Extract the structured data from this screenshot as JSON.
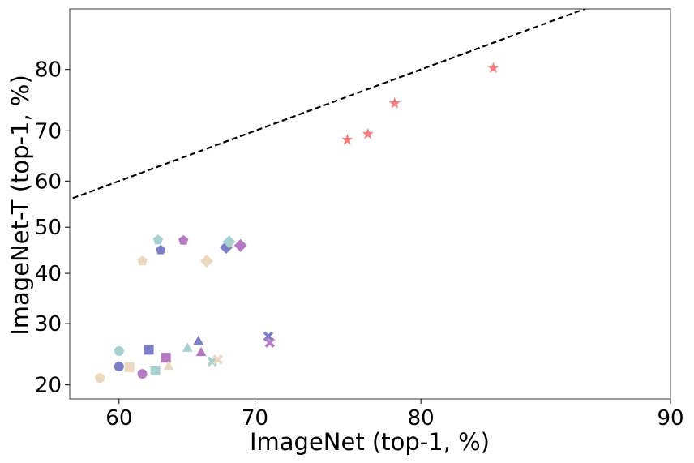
{
  "chart_data": {
    "type": "scatter",
    "title": "",
    "xlabel": "ImageNet (top-1, %)",
    "ylabel": "ImageNet-T (top-1, %)",
    "x_scale": "logit",
    "y_scale": "logit",
    "xlim": [
      56.1,
      90
    ],
    "ylim": [
      18.1,
      87.2
    ],
    "x_ticks": [
      60,
      70,
      80,
      90
    ],
    "x_tick_labels": [
      "60",
      "70",
      "80",
      "90"
    ],
    "y_ticks": [
      20,
      30,
      40,
      50,
      60,
      70,
      80
    ],
    "y_tick_labels": [
      "20",
      "30",
      "40",
      "50",
      "60",
      "70",
      "80"
    ],
    "grid": false,
    "reference_line": {
      "style": "dashed",
      "color": "#000000",
      "description": "y = x"
    },
    "colors": {
      "salmon": "#f47f7f",
      "teal": "#a9d0d1",
      "indigo": "#7d7fc6",
      "orchid": "#b57bc2",
      "beige": "#ead8c1"
    },
    "points": [
      {
        "x": 58.5,
        "y": 21.0,
        "marker": "circle",
        "color": "#ead8c1"
      },
      {
        "x": 60.0,
        "y": 25.2,
        "marker": "circle",
        "color": "#a9d0d1"
      },
      {
        "x": 60.0,
        "y": 22.7,
        "marker": "circle",
        "color": "#7d7fc6"
      },
      {
        "x": 61.8,
        "y": 21.6,
        "marker": "circle",
        "color": "#b57bc2"
      },
      {
        "x": 60.8,
        "y": 22.6,
        "marker": "square",
        "color": "#ead8c1"
      },
      {
        "x": 62.3,
        "y": 25.4,
        "marker": "square",
        "color": "#7d7fc6"
      },
      {
        "x": 62.8,
        "y": 22.1,
        "marker": "square",
        "color": "#a9d0d1"
      },
      {
        "x": 63.6,
        "y": 24.1,
        "marker": "square",
        "color": "#b57bc2"
      },
      {
        "x": 63.8,
        "y": 22.8,
        "marker": "triangle",
        "color": "#ead8c1"
      },
      {
        "x": 65.2,
        "y": 25.7,
        "marker": "triangle",
        "color": "#a9d0d1"
      },
      {
        "x": 66.0,
        "y": 26.9,
        "marker": "triangle",
        "color": "#7d7fc6"
      },
      {
        "x": 66.2,
        "y": 25.0,
        "marker": "triangle",
        "color": "#b57bc2"
      },
      {
        "x": 67.0,
        "y": 23.5,
        "marker": "x",
        "color": "#a9d0d1"
      },
      {
        "x": 67.4,
        "y": 23.8,
        "marker": "x",
        "color": "#ead8c1"
      },
      {
        "x": 70.9,
        "y": 27.7,
        "marker": "x",
        "color": "#7d7fc6"
      },
      {
        "x": 71.0,
        "y": 26.6,
        "marker": "x",
        "color": "#b57bc2"
      },
      {
        "x": 61.8,
        "y": 42.6,
        "marker": "pentagon",
        "color": "#ead8c1"
      },
      {
        "x": 63.0,
        "y": 47.2,
        "marker": "pentagon",
        "color": "#a9d0d1"
      },
      {
        "x": 63.2,
        "y": 45.0,
        "marker": "pentagon",
        "color": "#7d7fc6"
      },
      {
        "x": 64.9,
        "y": 47.1,
        "marker": "pentagon",
        "color": "#b57bc2"
      },
      {
        "x": 66.6,
        "y": 42.6,
        "marker": "diamond",
        "color": "#ead8c1"
      },
      {
        "x": 68.0,
        "y": 45.6,
        "marker": "diamond",
        "color": "#7d7fc6"
      },
      {
        "x": 68.2,
        "y": 46.8,
        "marker": "diamond",
        "color": "#a9d0d1"
      },
      {
        "x": 69.0,
        "y": 46.0,
        "marker": "diamond",
        "color": "#b57bc2"
      },
      {
        "x": 75.9,
        "y": 68.3,
        "marker": "star",
        "color": "#f47f7f"
      },
      {
        "x": 77.1,
        "y": 69.4,
        "marker": "star",
        "color": "#f47f7f"
      },
      {
        "x": 78.6,
        "y": 74.8,
        "marker": "star",
        "color": "#f47f7f"
      },
      {
        "x": 83.5,
        "y": 80.2,
        "marker": "star",
        "color": "#f47f7f"
      }
    ]
  }
}
